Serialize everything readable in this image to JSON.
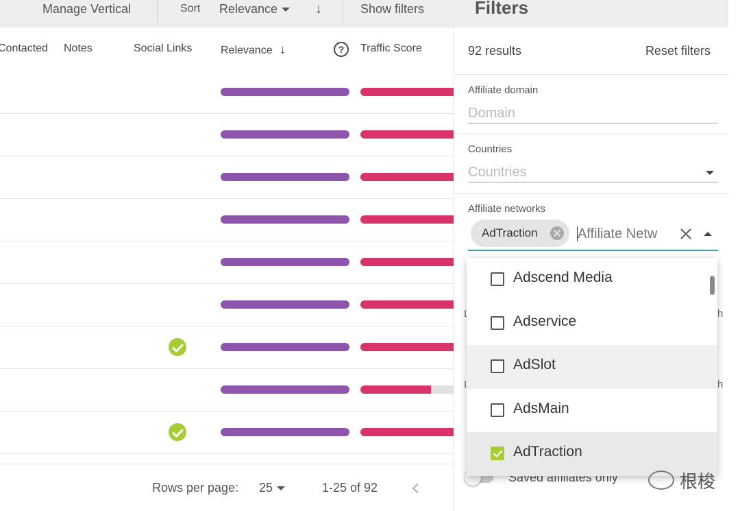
{
  "toolbar": {
    "manage_vertical": "Manage Vertical",
    "sort_label": "Sort",
    "sort_value": "Relevance",
    "sort_direction_icon": "arrow-down-icon",
    "show_filters": "Show filters"
  },
  "table": {
    "columns": [
      "Contacted",
      "Notes",
      "Social Links",
      "Relevance",
      "Traffic Score"
    ],
    "relevance_sort_icon": "arrow-down-icon",
    "help_icon": "?",
    "rows": [
      {
        "social_links": false,
        "relevance": 1.0,
        "traffic": 1.0
      },
      {
        "social_links": false,
        "relevance": 1.0,
        "traffic": 1.0
      },
      {
        "social_links": false,
        "relevance": 1.0,
        "traffic": 1.0
      },
      {
        "social_links": false,
        "relevance": 1.0,
        "traffic": 1.0
      },
      {
        "social_links": false,
        "relevance": 1.0,
        "traffic": 1.0
      },
      {
        "social_links": false,
        "relevance": 1.0,
        "traffic": 1.0
      },
      {
        "social_links": true,
        "relevance": 1.0,
        "traffic": 1.0
      },
      {
        "social_links": false,
        "relevance": 1.0,
        "traffic": 0.76
      },
      {
        "social_links": true,
        "relevance": 1.0,
        "traffic": 1.0
      }
    ]
  },
  "footer": {
    "rows_per_page_label": "Rows per page:",
    "rows_per_page_value": "25",
    "range": "1-25 of 92"
  },
  "filters": {
    "title": "Filters",
    "results": "92 results",
    "reset": "Reset filters",
    "domain_label": "Affiliate domain",
    "domain_placeholder": "Domain",
    "countries_label": "Countries",
    "countries_placeholder": "Countries",
    "networks_label": "Affiliate networks",
    "networks_chip": "AdTraction",
    "networks_placeholder": "Affiliate Netw",
    "peek_l1": "L",
    "peek_r1": "h",
    "peek_l2": "L",
    "peek_r2": "h",
    "options": [
      {
        "label": "Adscend Media",
        "checked": false,
        "highlight": false
      },
      {
        "label": "Adservice",
        "checked": false,
        "highlight": false
      },
      {
        "label": "AdSlot",
        "checked": false,
        "highlight": true
      },
      {
        "label": "AdsMain",
        "checked": false,
        "highlight": false
      },
      {
        "label": "AdTraction",
        "checked": true,
        "highlight": true
      }
    ],
    "saved_only": "Saved affiliates only"
  },
  "colors": {
    "relevance_bar": "#8e55ad",
    "traffic_bar": "#d8346a",
    "check": "#a8cc34",
    "focus": "#3aa7a6"
  },
  "watermark": "根梭"
}
